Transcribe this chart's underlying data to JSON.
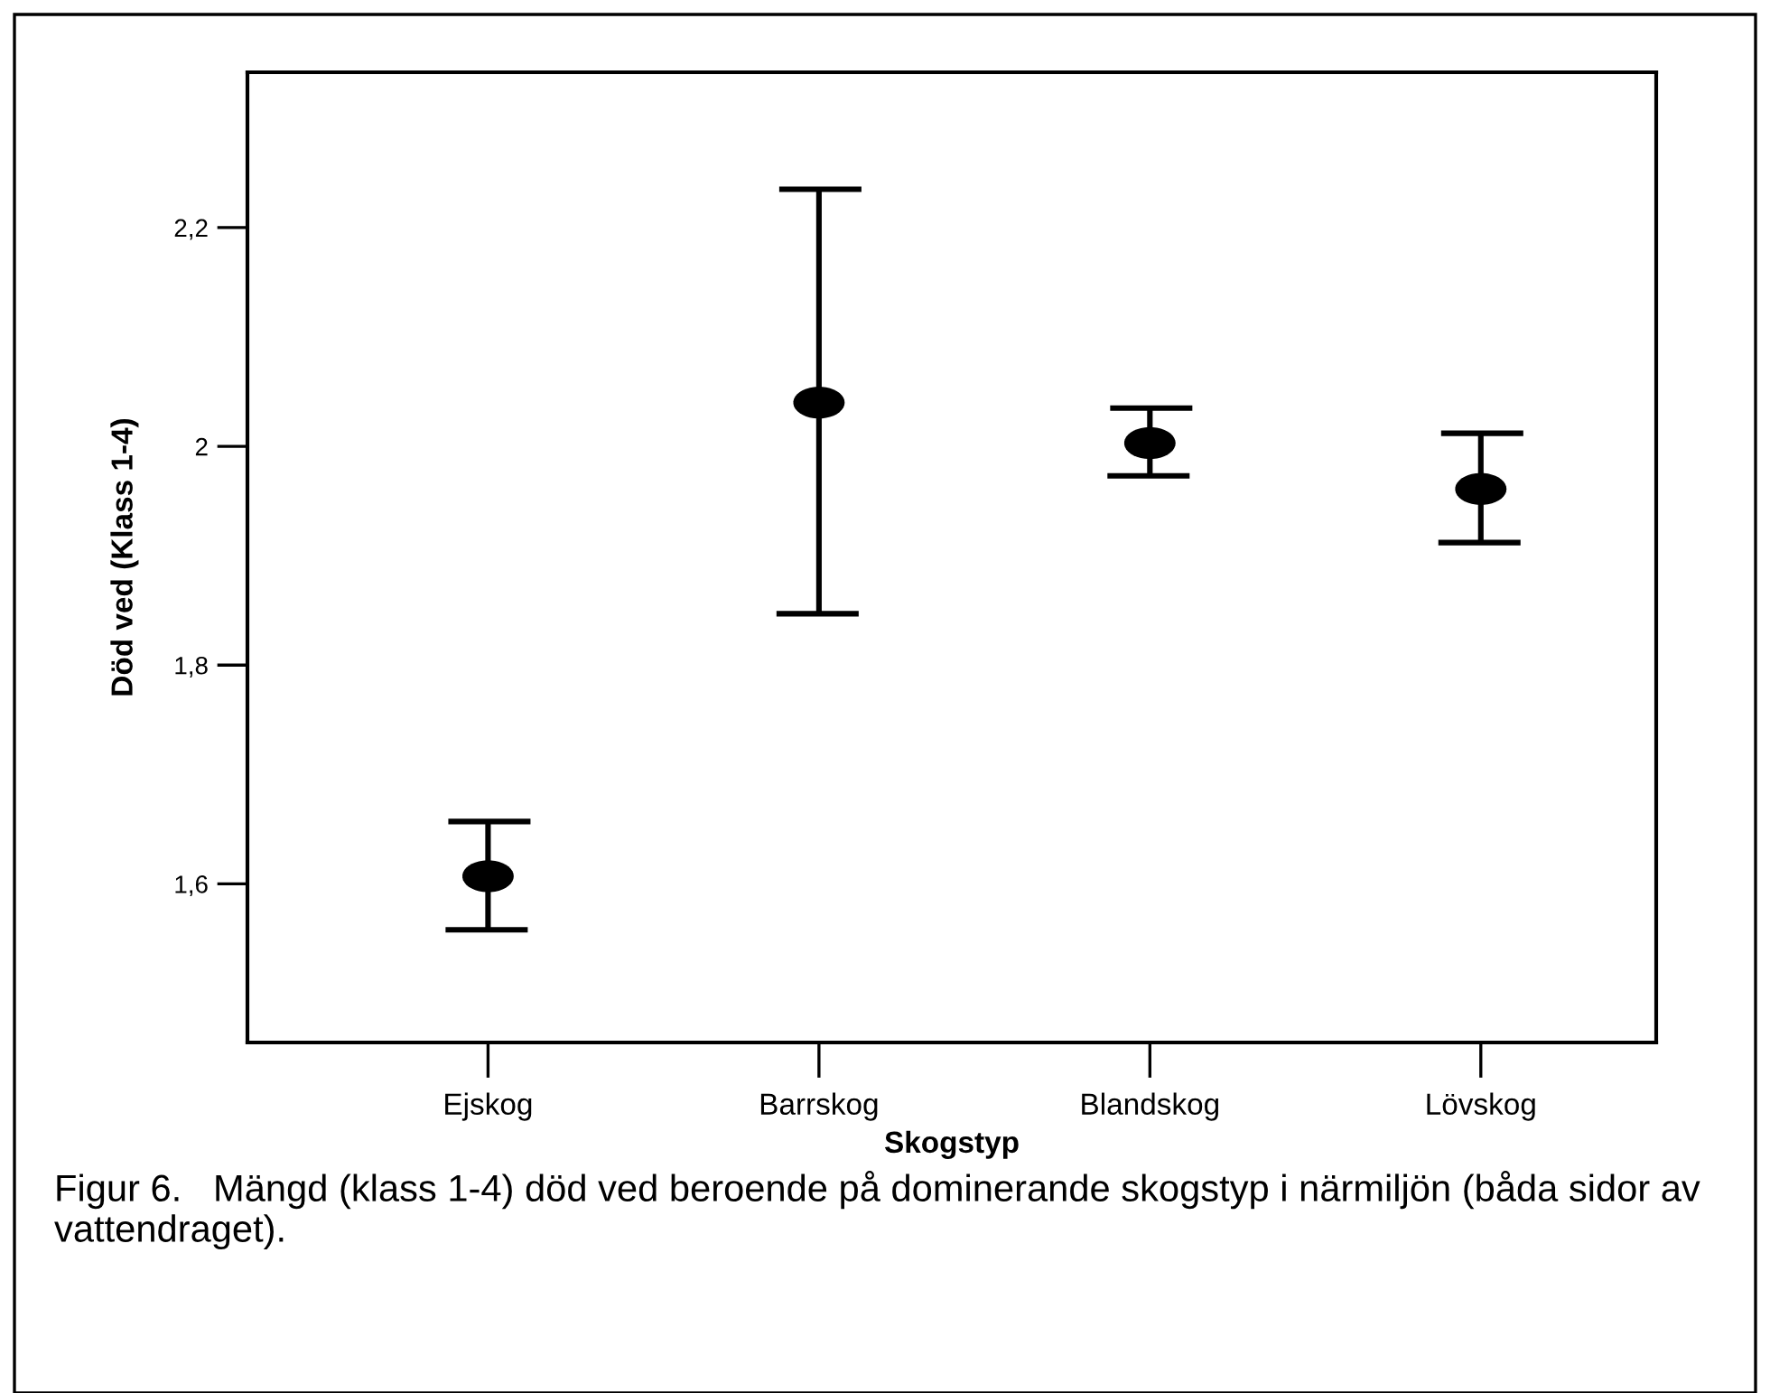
{
  "chart_data": {
    "type": "scatter",
    "xlabel": "Skogstyp",
    "ylabel": "Död ved (Klass 1-4)",
    "categories": [
      "Ejskog",
      "Barrskog",
      "Blandskog",
      "Lövskog"
    ],
    "series": [
      {
        "color": "#000000",
        "values": [
          1.607,
          2.04,
          2.003,
          1.961
        ],
        "errors": [
          [
            1.558,
            1.657
          ],
          [
            1.847,
            2.235
          ],
          [
            1.973,
            2.035
          ],
          [
            1.912,
            2.012
          ]
        ]
      }
    ],
    "ylim": [
      1.455,
      2.342
    ],
    "yticks": [
      {
        "value": 1.6,
        "label": "1,6"
      },
      {
        "value": 1.8,
        "label": "1,8"
      },
      {
        "value": 2,
        "label": "2"
      },
      {
        "value": 2.2,
        "label": "2,2"
      }
    ],
    "marker": "circle",
    "grid": false,
    "legend": false,
    "annotations": [
      "Figur 6.   Mängd (klass 1-4) död ved beroende på dominerande skogstyp i närmiljön (båda sidor av vattendraget)."
    ]
  }
}
